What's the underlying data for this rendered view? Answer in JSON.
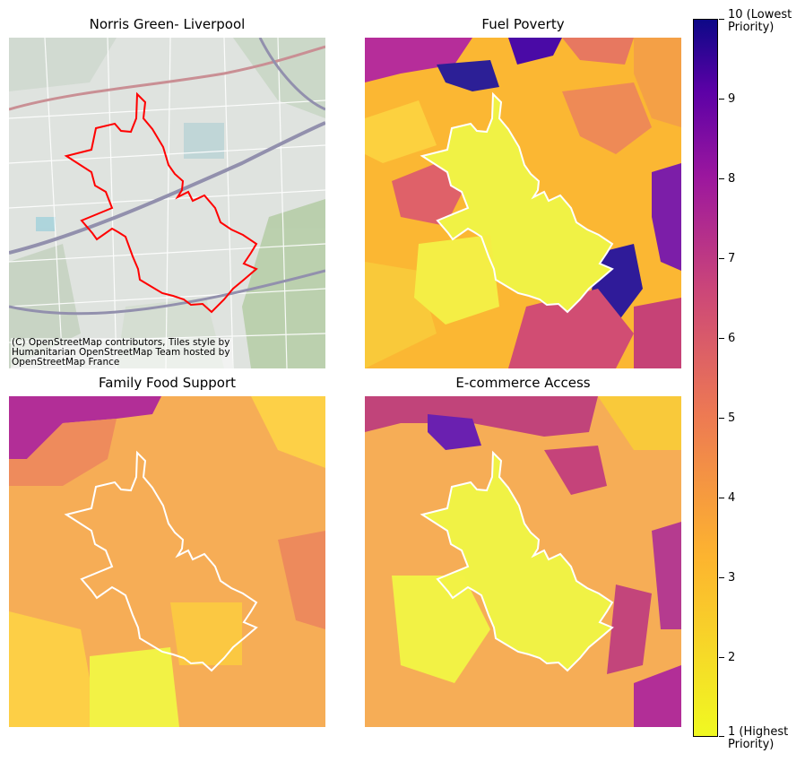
{
  "panels": [
    {
      "title": "Norris Green- Liverpool",
      "kind": "basemap"
    },
    {
      "title": "Fuel Poverty",
      "kind": "choropleth"
    },
    {
      "title": "Family Food Support",
      "kind": "choropleth"
    },
    {
      "title": "E-commerce Access",
      "kind": "choropleth"
    }
  ],
  "attribution": {
    "line1": "(C) OpenStreetMap contributors, Tiles style by",
    "line2": "Humanitarian OpenStreetMap Team hosted by",
    "line3": "OpenStreetMap France"
  },
  "colorbar": {
    "colormap": "plasma (reversed)",
    "top_label_1": "10 (Lowest",
    "top_label_2": " Priority)",
    "bottom_label_1": "1 (Highest",
    "bottom_label_2": " Priority)",
    "ticks": [
      "9",
      "8",
      "7",
      "6",
      "5",
      "4",
      "3",
      "2"
    ],
    "colors": {
      "low": "#f0f921",
      "high": "#0d0887"
    }
  },
  "boundary_colors": {
    "basemap": "#ff0000",
    "choropleth": "#ffffff"
  }
}
